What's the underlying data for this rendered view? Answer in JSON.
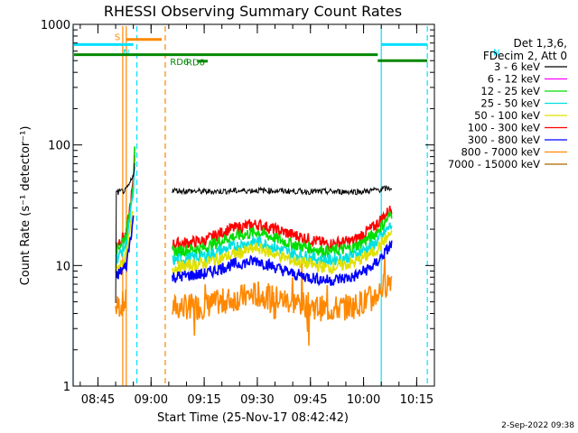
{
  "chart_data": {
    "type": "line",
    "title": "RHESSI Observing Summary Count Rates",
    "xlabel": "Start Time (25-Nov-17 08:42:42)",
    "ylabel": "Count Rate (s⁻¹ detector⁻¹)",
    "yscale": "log",
    "ylim": [
      1,
      1000
    ],
    "xlim": [
      "08:38",
      "10:20"
    ],
    "x_ticks": [
      "08:45",
      "09:00",
      "09:15",
      "09:30",
      "09:45",
      "10:00",
      "10:15"
    ],
    "y_ticks": [
      "1",
      "10",
      "100",
      "1000"
    ],
    "legend_header": [
      "Det 1,3,6,",
      "FDecim 2, Att 0"
    ],
    "footer_date": "2-Sep-2022 09:38",
    "series": [
      {
        "name": "3 - 6 keV",
        "color": "#000000",
        "segments": [
          {
            "x": [
              "08:50",
              "08:50",
              "08:53",
              "08:55",
              "08:55:30"
            ],
            "y": [
              5,
              40,
              42,
              55,
              80
            ]
          },
          {
            "x": [
              "09:06",
              "09:15",
              "09:30",
              "09:45",
              "10:00",
              "10:08"
            ],
            "y": [
              42,
              41,
              42,
              41,
              41,
              44
            ]
          }
        ]
      },
      {
        "name": "6 - 12 keV",
        "color": "#ff00ff",
        "segments": []
      },
      {
        "name": "12 - 25 keV",
        "color": "#00dd00",
        "segments": [
          {
            "x": [
              "08:50",
              "08:53",
              "08:55",
              "08:55:30"
            ],
            "y": [
              13,
              18,
              50,
              110
            ]
          },
          {
            "x": [
              "09:06",
              "09:15",
              "09:22",
              "09:30",
              "09:40",
              "09:50",
              "09:57",
              "10:03",
              "10:08"
            ],
            "y": [
              13,
              14,
              17,
              19,
              15,
              13,
              14,
              18,
              27
            ]
          }
        ]
      },
      {
        "name": "25 - 50 keV",
        "color": "#00e0e0",
        "segments": [
          {
            "x": [
              "08:50",
              "08:53",
              "08:55",
              "08:55:30"
            ],
            "y": [
              11,
              15,
              40,
              90
            ]
          },
          {
            "x": [
              "09:06",
              "09:15",
              "09:22",
              "09:30",
              "09:40",
              "09:50",
              "09:57",
              "10:03",
              "10:08"
            ],
            "y": [
              11,
              12,
              14,
              16,
              12.5,
              11,
              12,
              15,
              22
            ]
          }
        ]
      },
      {
        "name": "50 - 100 keV",
        "color": "#e0e000",
        "segments": [
          {
            "x": [
              "08:50",
              "08:53",
              "08:55"
            ],
            "y": [
              9,
              12,
              30
            ]
          },
          {
            "x": [
              "09:06",
              "09:15",
              "09:22",
              "09:30",
              "09:40",
              "09:50",
              "09:57",
              "10:03",
              "10:08"
            ],
            "y": [
              9.5,
              10.5,
              12,
              14,
              11,
              9.5,
              10.5,
              13,
              19
            ]
          }
        ]
      },
      {
        "name": "100 - 300 keV",
        "color": "#ff0000",
        "segments": [
          {
            "x": [
              "08:50",
              "08:53",
              "08:55",
              "08:55:30"
            ],
            "y": [
              15,
              18,
              50,
              100
            ]
          },
          {
            "x": [
              "09:06",
              "09:15",
              "09:22",
              "09:30",
              "09:40",
              "09:50",
              "09:57",
              "10:03",
              "10:08"
            ],
            "y": [
              15,
              16,
              20,
              22,
              18,
              15,
              16,
              21,
              30
            ]
          }
        ]
      },
      {
        "name": "300 - 800 keV",
        "color": "#0000ff",
        "segments": [
          {
            "x": [
              "08:50",
              "08:53",
              "08:55"
            ],
            "y": [
              8,
              10,
              25
            ]
          },
          {
            "x": [
              "09:06",
              "09:15",
              "09:22",
              "09:30",
              "09:40",
              "09:50",
              "09:57",
              "10:03",
              "10:08"
            ],
            "y": [
              8,
              8.5,
              10,
              11,
              8.5,
              7.5,
              8,
              10,
              15
            ]
          }
        ]
      },
      {
        "name": "800 - 7000 keV",
        "color": "#ff8800",
        "segments": [
          {
            "x": [
              "08:50",
              "08:53"
            ],
            "y": [
              4.5,
              5
            ]
          },
          {
            "x": [
              "09:06",
              "09:15",
              "09:22",
              "09:30",
              "09:40",
              "09:50",
              "09:57",
              "10:03",
              "10:08"
            ],
            "y": [
              4.5,
              4.6,
              5.2,
              5.8,
              5,
              4.3,
              4.6,
              5.5,
              8
            ]
          }
        ]
      },
      {
        "name": "7000 - 15000 keV",
        "color": "#aa6600",
        "segments": []
      }
    ],
    "annotations": {
      "intervals": [
        {
          "label": "S",
          "color": "#ff8800",
          "x": [
            "08:53",
            "09:03"
          ],
          "y": 750
        },
        {
          "label": "N",
          "color": "#00e0ff",
          "x": [
            "08:38",
            "08:55"
          ],
          "y": 680
        },
        {
          "label": "N",
          "color": "#00e0ff",
          "x": [
            "10:05",
            "10:18"
          ],
          "y": 680
        },
        {
          "label": "RD0",
          "color": "#008800",
          "x": [
            "08:38",
            "10:04"
          ],
          "y": 560
        },
        {
          "label": "RD6",
          "color": "#008800",
          "x": [
            "09:13",
            "09:16"
          ],
          "y": 495
        },
        {
          "label": "",
          "color": "#008800",
          "x": [
            "10:04",
            "10:18"
          ],
          "y": 500
        }
      ],
      "vlines": [
        {
          "x": "08:38",
          "color": "#00e0ff",
          "dash": false
        },
        {
          "x": "08:52",
          "color": "#ff8800",
          "dash": false
        },
        {
          "x": "08:53",
          "color": "#ff8800",
          "dash": false
        },
        {
          "x": "08:56",
          "color": "#00e0ff",
          "dash": true
        },
        {
          "x": "09:04",
          "color": "#ff8800",
          "dash": true
        },
        {
          "x": "10:05",
          "color": "#00e0ff",
          "dash": false
        },
        {
          "x": "10:18",
          "color": "#00e0ff",
          "dash": true
        }
      ]
    }
  }
}
